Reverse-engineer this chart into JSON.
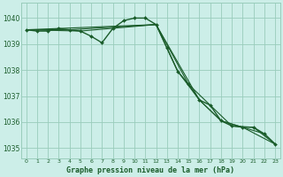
{
  "title": "Graphe pression niveau de la mer (hPa)",
  "background_color": "#cceee8",
  "grid_color": "#99ccbb",
  "line_color": "#1a5c2a",
  "xlim": [
    -0.5,
    23.5
  ],
  "ylim": [
    1034.6,
    1040.6
  ],
  "ytick_values": [
    1035,
    1036,
    1037,
    1038,
    1039,
    1040
  ],
  "series_main": {
    "x": [
      0,
      1,
      2,
      3,
      4,
      5,
      6,
      7,
      8,
      9,
      10,
      11,
      12,
      13,
      14,
      15,
      16,
      17,
      18,
      19,
      20,
      21,
      22,
      23
    ],
    "y": [
      1039.55,
      1039.5,
      1039.5,
      1039.6,
      1039.55,
      1039.5,
      1039.3,
      1039.05,
      1039.6,
      1039.9,
      1040.0,
      1040.0,
      1039.75,
      1038.85,
      1037.95,
      1037.45,
      1036.85,
      1036.65,
      1036.05,
      1035.85,
      1035.8,
      1035.8,
      1035.55,
      1035.15
    ]
  },
  "series_extra": [
    {
      "x": [
        0,
        3,
        12,
        15,
        17,
        19,
        21,
        23
      ],
      "y": [
        1039.55,
        1039.6,
        1039.75,
        1037.45,
        1036.65,
        1035.85,
        1035.8,
        1035.15
      ]
    },
    {
      "x": [
        0,
        4,
        12,
        14,
        16,
        18,
        20,
        22,
        23
      ],
      "y": [
        1039.55,
        1039.55,
        1039.75,
        1037.95,
        1036.85,
        1036.05,
        1035.8,
        1035.55,
        1035.15
      ]
    },
    {
      "x": [
        0,
        5,
        12,
        16,
        18,
        20,
        23
      ],
      "y": [
        1039.55,
        1039.5,
        1039.75,
        1036.85,
        1036.05,
        1035.8,
        1035.15
      ]
    }
  ]
}
